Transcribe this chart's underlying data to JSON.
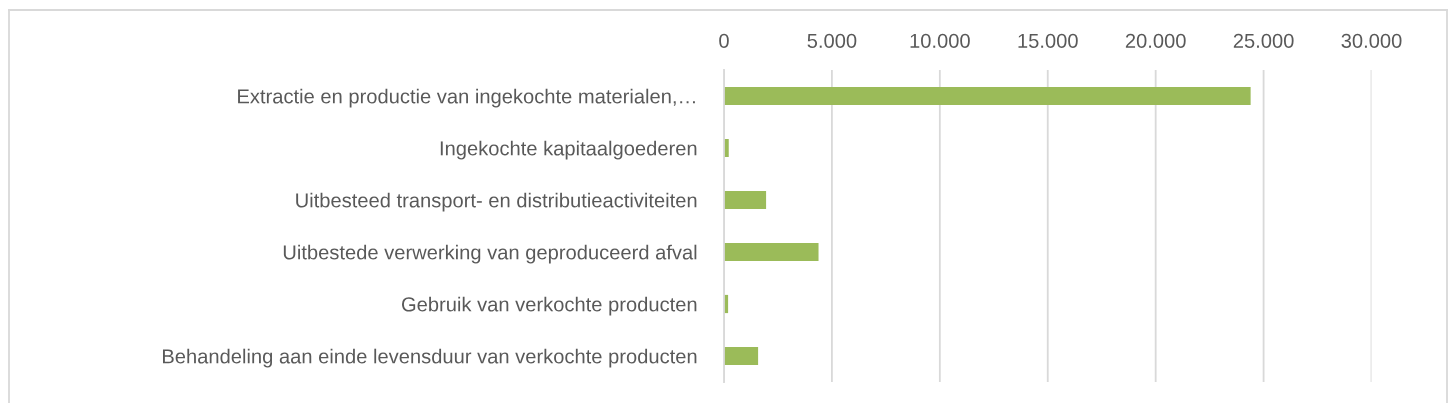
{
  "chart_data": {
    "type": "bar",
    "orientation": "horizontal",
    "categories": [
      "Extractie en productie van ingekochte materialen,…",
      "Ingekochte kapitaalgoederen",
      "Uitbesteed transport- en distributieactiviteiten",
      "Uitbestede verwerking van geproduceerd afval",
      "Gebruik van verkochte producten",
      "Behandeling aan einde levensduur van verkochte producten"
    ],
    "values": [
      24400,
      220,
      1950,
      4380,
      190,
      1580
    ],
    "color": "#9bbb59",
    "xlim": [
      0,
      30000
    ],
    "xticks": [
      0,
      {
        "value": 5000,
        "label": "5.000"
      },
      {
        "value": 10000,
        "label": "10.000"
      },
      {
        "value": 15000,
        "label": "15.000"
      },
      {
        "value": 20000,
        "label": "20.000"
      },
      {
        "value": 25000,
        "label": "25.000"
      },
      {
        "value": 30000,
        "label": "30.000"
      }
    ],
    "grid": "x"
  }
}
